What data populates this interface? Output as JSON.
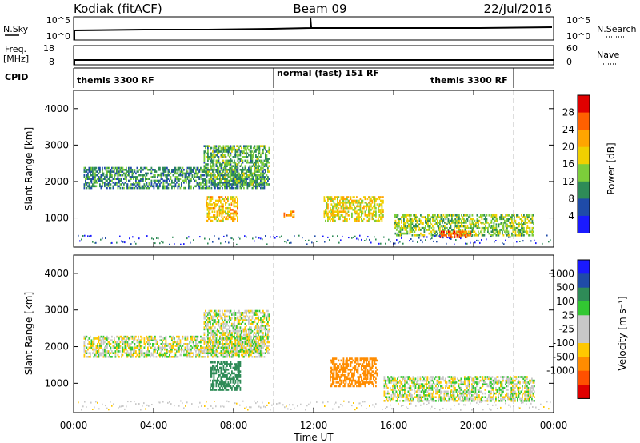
{
  "header": {
    "station": "Kodiak (fitACF)",
    "beam": "Beam 09",
    "date": "22/Jul/2016"
  },
  "params": {
    "nsky_label": "N.Sky",
    "nsky_ticks": [
      "10^5",
      "10^0"
    ],
    "nsearch_label": "N.Search",
    "nsearch_ticks": [
      "10^5",
      "10^0"
    ],
    "freq_label_1": "Freq.",
    "freq_label_2": "[MHz]",
    "freq_ticks": [
      "18",
      "8"
    ],
    "nave_label": "Nave",
    "nave_ticks": [
      "60",
      "0"
    ],
    "cpid_label": "CPID",
    "cpid_segments": [
      "themis 3300 RF",
      "normal (fast) 151 RF",
      "themis 3300 RF"
    ]
  },
  "colors": {
    "power": [
      "#1a1aff",
      "#1f4ba8",
      "#2e8b57",
      "#7ccd3a",
      "#f0d000",
      "#ffa500",
      "#ff6000",
      "#e00000"
    ],
    "velocity": [
      "#e00000",
      "#ff5000",
      "#ff8c00",
      "#ffc800",
      "#c8c8c8",
      "#c8c8c8",
      "#32c832",
      "#2e8b57",
      "#1f4ba8",
      "#1a1aff"
    ]
  },
  "chart_data": [
    {
      "type": "heatmap",
      "title": "",
      "xlabel": "",
      "ylabel": "Slant Range [km]",
      "xlim": [
        0,
        24
      ],
      "ylim": [
        200,
        4500
      ],
      "grid": false,
      "y_ticks": [
        "1000",
        "2000",
        "3000",
        "4000"
      ],
      "colorbar_label": "Power [dB]",
      "colorbar_ticks": [
        "4",
        "8",
        "12",
        "16",
        "20",
        "24",
        "28"
      ],
      "colorbar_range": [
        0,
        32
      ],
      "features": [
        {
          "t0": 0.5,
          "t1": 9.5,
          "r0": 1800,
          "r1": 2400,
          "level": 10
        },
        {
          "t0": 6.5,
          "t1": 9.8,
          "r0": 1900,
          "r1": 3000,
          "level": 12
        },
        {
          "t0": 6.6,
          "t1": 8.2,
          "r0": 900,
          "r1": 1600,
          "level": 20
        },
        {
          "t0": 10.5,
          "t1": 11.0,
          "r0": 1000,
          "r1": 1200,
          "level": 24
        },
        {
          "t0": 12.5,
          "t1": 15.5,
          "r0": 900,
          "r1": 1600,
          "level": 18
        },
        {
          "t0": 16.0,
          "t1": 23.0,
          "r0": 500,
          "r1": 1100,
          "level": 14
        },
        {
          "t0": 18.3,
          "t1": 19.8,
          "r0": 450,
          "r1": 650,
          "level": 26
        }
      ]
    },
    {
      "type": "heatmap",
      "title": "",
      "xlabel": "Time UT",
      "ylabel": "Slant Range [km]",
      "xlim": [
        0,
        24
      ],
      "ylim": [
        200,
        4500
      ],
      "grid": false,
      "x_ticks": [
        "00:00",
        "04:00",
        "08:00",
        "12:00",
        "16:00",
        "20:00",
        "00:00"
      ],
      "y_ticks": [
        "1000",
        "2000",
        "3000",
        "4000"
      ],
      "colorbar_label": "Velocity [m s⁻¹]",
      "colorbar_ticks": [
        "1000",
        "500",
        "100",
        "25",
        "-25",
        "-100",
        "-500",
        "-1000"
      ],
      "colorbar_range": [
        -1000,
        1000
      ],
      "features": [
        {
          "t0": 0.5,
          "t1": 9.5,
          "r0": 1700,
          "r1": 2300,
          "level": 0
        },
        {
          "t0": 6.5,
          "t1": 9.8,
          "r0": 1800,
          "r1": 3000,
          "level": 0
        },
        {
          "t0": 6.8,
          "t1": 8.3,
          "r0": 800,
          "r1": 1600,
          "level": 300
        },
        {
          "t0": 12.8,
          "t1": 15.2,
          "r0": 900,
          "r1": 1700,
          "level": -300
        },
        {
          "t0": 15.5,
          "t1": 23.0,
          "r0": 500,
          "r1": 1200,
          "level": 0
        }
      ]
    }
  ]
}
